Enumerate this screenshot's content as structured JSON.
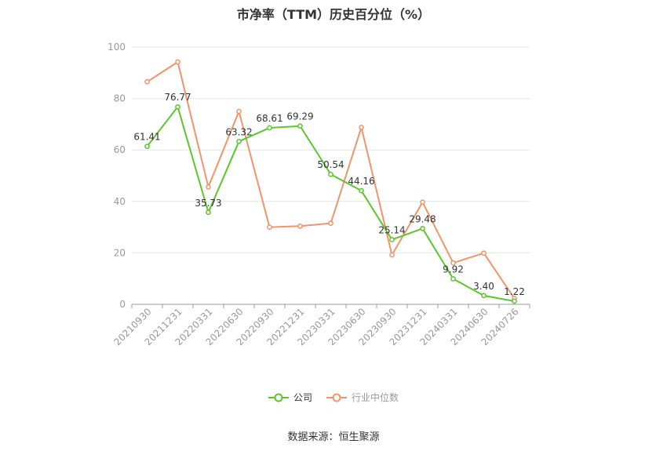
{
  "chart_data": {
    "type": "line",
    "title": "市净率（TTM）历史百分位（%）",
    "categories": [
      "20210930",
      "20211231",
      "20220331",
      "20220630",
      "20220930",
      "20221231",
      "20230331",
      "20230630",
      "20230930",
      "20231231",
      "20240331",
      "20240630",
      "20240726"
    ],
    "ylim": [
      0,
      100
    ],
    "yticks": [
      0,
      20,
      40,
      60,
      80,
      100
    ],
    "grid": true,
    "legend_position": "bottom",
    "series": [
      {
        "name": "公司",
        "color": "#5cc62a",
        "values": [
          61.41,
          76.77,
          35.73,
          63.32,
          68.61,
          69.29,
          50.54,
          44.16,
          25.14,
          29.48,
          9.92,
          3.4,
          1.22
        ],
        "labels": [
          "61.41",
          "76.77",
          "35.73",
          "63.32",
          "68.61",
          "69.29",
          "50.54",
          "44.16",
          "25.14",
          "29.48",
          "9.92",
          "3.40",
          "1.22"
        ]
      },
      {
        "name": "行业中位数",
        "color": "#f0946a",
        "values": [
          86.5,
          94.2,
          45.6,
          75.0,
          30.0,
          30.4,
          31.5,
          68.8,
          19.2,
          39.7,
          16.1,
          19.9,
          2.3
        ]
      }
    ]
  },
  "source": "数据来源：恒生聚源"
}
